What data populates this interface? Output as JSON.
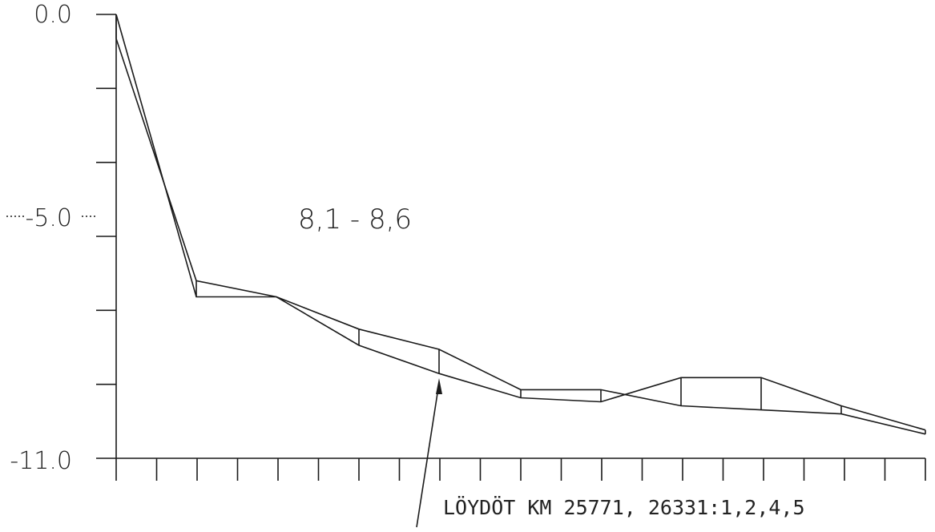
{
  "chart_data": {
    "type": "line",
    "y_tick_labels": [
      "0.0",
      "-5.0",
      "-11.0"
    ],
    "ylim": [
      -11.0,
      0.0
    ],
    "grid": false,
    "x_tick_count": 21,
    "series": [
      {
        "values": [
          0.0,
          -7.0,
          -7.0,
          -7.3,
          -8.2,
          -8.9,
          -9.2,
          -9.5,
          -9.6,
          -9.6,
          -9.7,
          -9.8,
          -10.0,
          -10.3
        ]
      },
      {
        "values": [
          -0.6,
          -6.6,
          -7.0,
          -7.8,
          -8.3,
          -9.3,
          -9.3,
          -9.1,
          -9.0,
          -10.0,
          -10.4
        ]
      }
    ],
    "annotations": {
      "label": "8,1  -  8,6",
      "note": "LÖYDÖT KM 25771, 26331:1,2,4,5"
    }
  }
}
